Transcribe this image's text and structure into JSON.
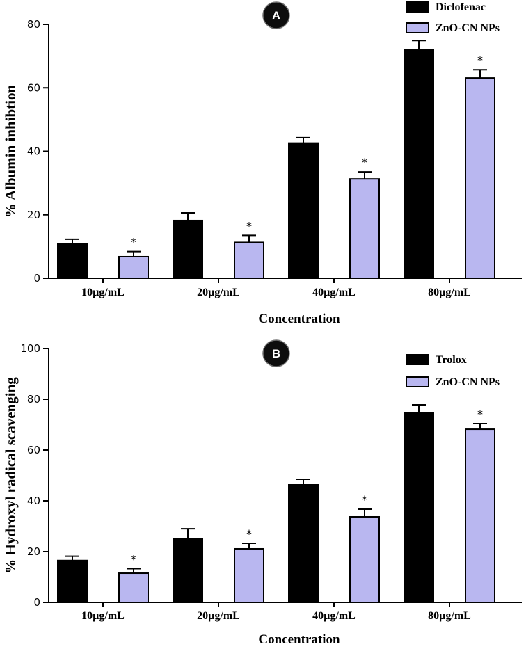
{
  "chart_data": [
    {
      "type": "bar",
      "panel_label": "A",
      "categories": [
        "10µg/mL",
        "20µg/mL",
        "40µg/mL",
        "80µg/mL"
      ],
      "series": [
        {
          "name": "Diclofenac",
          "color": "#000000",
          "values": [
            10.8,
            18.2,
            42.6,
            72.0
          ],
          "errors": [
            1.5,
            2.4,
            1.7,
            2.9
          ]
        },
        {
          "name": "ZnO-CN NPs",
          "color": "#b9b7f0",
          "values": [
            6.8,
            11.3,
            31.3,
            63.1
          ],
          "errors": [
            1.6,
            2.2,
            2.2,
            2.6
          ]
        }
      ],
      "annotations": [
        "*",
        "*",
        "*",
        "*"
      ],
      "xlabel": "Concentration",
      "ylabel": "% Albumin inhibtion",
      "ylim": [
        0,
        80
      ],
      "yticks": [
        "0",
        "20",
        "40",
        "60",
        "80"
      ],
      "legend": "top-right"
    },
    {
      "type": "bar",
      "panel_label": "B",
      "categories": [
        "10µg/mL",
        "20µg/mL",
        "40µg/mL",
        "80µg/mL"
      ],
      "series": [
        {
          "name": "Trolox",
          "color": "#000000",
          "values": [
            16.5,
            25.2,
            46.3,
            74.6
          ],
          "errors": [
            1.7,
            3.8,
            2.2,
            3.2
          ]
        },
        {
          "name": "ZnO-CN NPs",
          "color": "#b9b7f0",
          "values": [
            11.5,
            21.1,
            33.7,
            68.2
          ],
          "errors": [
            1.8,
            2.2,
            3.0,
            2.2
          ]
        }
      ],
      "annotations": [
        "*",
        "*",
        "*",
        "*"
      ],
      "xlabel": "Concentration",
      "ylabel": "% Hydroxyl radical scavenging",
      "ylim": [
        0,
        100
      ],
      "yticks": [
        "0",
        "20",
        "40",
        "60",
        "80",
        "100"
      ],
      "legend": "top-right"
    }
  ]
}
